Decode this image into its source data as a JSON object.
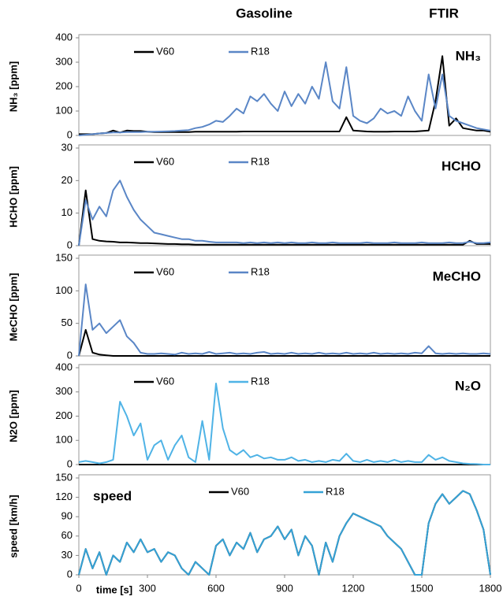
{
  "header": {
    "title": "Gasoline",
    "method": "FTIR"
  },
  "chart_data": [
    {
      "type": "line",
      "annotation": "NH₃",
      "ylabel": "NH₃ [ppm]",
      "x": [
        0,
        30,
        60,
        90,
        120,
        150,
        180,
        210,
        240,
        270,
        300,
        330,
        360,
        390,
        420,
        450,
        480,
        510,
        540,
        570,
        600,
        630,
        660,
        690,
        720,
        750,
        780,
        810,
        840,
        870,
        900,
        930,
        960,
        990,
        1020,
        1050,
        1080,
        1110,
        1140,
        1170,
        1200,
        1230,
        1260,
        1290,
        1320,
        1350,
        1380,
        1410,
        1440,
        1470,
        1500,
        1530,
        1560,
        1590,
        1620,
        1650,
        1680,
        1710,
        1740,
        1770,
        1800
      ],
      "xlim": [
        0,
        1800
      ],
      "ylim": [
        0,
        400
      ],
      "yticks": [
        0,
        100,
        200,
        300,
        400
      ],
      "series": [
        {
          "name": "V60",
          "color": "#000000",
          "values": [
            5,
            5,
            5,
            8,
            10,
            20,
            12,
            20,
            18,
            18,
            15,
            14,
            14,
            14,
            14,
            14,
            14,
            15,
            15,
            15,
            15,
            15,
            15,
            15,
            16,
            16,
            16,
            16,
            16,
            16,
            16,
            16,
            16,
            16,
            16,
            16,
            16,
            16,
            16,
            75,
            20,
            18,
            16,
            15,
            15,
            15,
            16,
            16,
            16,
            16,
            18,
            20,
            140,
            325,
            40,
            70,
            30,
            25,
            20,
            20,
            15
          ]
        },
        {
          "name": "R18",
          "color": "#5a86c6",
          "values": [
            0,
            3,
            5,
            8,
            10,
            12,
            12,
            14,
            14,
            14,
            15,
            15,
            16,
            17,
            18,
            20,
            22,
            30,
            35,
            45,
            60,
            55,
            80,
            110,
            90,
            160,
            140,
            170,
            130,
            100,
            180,
            120,
            170,
            130,
            200,
            150,
            300,
            140,
            110,
            280,
            80,
            60,
            50,
            70,
            110,
            90,
            100,
            80,
            160,
            100,
            60,
            250,
            110,
            250,
            80,
            60,
            50,
            40,
            30,
            25,
            20
          ]
        }
      ]
    },
    {
      "type": "line",
      "annotation": "HCHO",
      "ylabel": "HCHO [ppm]",
      "x": [
        0,
        30,
        60,
        90,
        120,
        150,
        180,
        210,
        240,
        270,
        300,
        330,
        360,
        390,
        420,
        450,
        480,
        510,
        540,
        570,
        600,
        630,
        660,
        690,
        720,
        750,
        780,
        810,
        840,
        870,
        900,
        930,
        960,
        990,
        1020,
        1050,
        1080,
        1110,
        1140,
        1170,
        1200,
        1230,
        1260,
        1290,
        1320,
        1350,
        1380,
        1410,
        1440,
        1470,
        1500,
        1530,
        1560,
        1590,
        1620,
        1650,
        1680,
        1710,
        1740,
        1770,
        1800
      ],
      "xlim": [
        0,
        1800
      ],
      "ylim": [
        0,
        30
      ],
      "yticks": [
        0,
        10,
        20,
        30
      ],
      "series": [
        {
          "name": "V60",
          "color": "#000000",
          "values": [
            0,
            17,
            2,
            1.5,
            1.3,
            1.2,
            1,
            1,
            0.9,
            0.8,
            0.8,
            0.7,
            0.6,
            0.5,
            0.5,
            0.4,
            0.4,
            0.3,
            0.3,
            0.3,
            0.3,
            0.3,
            0.3,
            0.3,
            0.3,
            0.3,
            0.3,
            0.3,
            0.3,
            0.3,
            0.3,
            0.3,
            0.3,
            0.3,
            0.3,
            0.3,
            0.3,
            0.3,
            0.3,
            0.3,
            0.3,
            0.3,
            0.3,
            0.3,
            0.3,
            0.3,
            0.3,
            0.3,
            0.3,
            0.3,
            0.3,
            0.3,
            0.3,
            0.3,
            0.3,
            0.3,
            0.3,
            1.5,
            0.5,
            0.5,
            0.5
          ]
        },
        {
          "name": "R18",
          "color": "#5a86c6",
          "values": [
            0,
            14,
            8,
            12,
            9,
            17,
            20,
            15,
            11,
            8,
            6,
            4,
            3.5,
            3,
            2.5,
            2,
            2,
            1.5,
            1.5,
            1.2,
            1,
            1,
            1,
            1,
            0.8,
            1,
            0.8,
            1,
            0.8,
            1,
            0.8,
            1,
            0.8,
            0.8,
            1,
            0.8,
            0.8,
            1,
            0.8,
            0.8,
            0.8,
            0.8,
            1,
            0.8,
            0.8,
            0.8,
            1,
            0.8,
            0.8,
            0.8,
            1,
            0.8,
            0.8,
            0.8,
            1,
            0.8,
            0.8,
            1.2,
            0.8,
            0.8,
            1
          ]
        }
      ]
    },
    {
      "type": "line",
      "annotation": "MeCHO",
      "ylabel": "MeCHO [ppm]",
      "x": [
        0,
        30,
        60,
        90,
        120,
        150,
        180,
        210,
        240,
        270,
        300,
        330,
        360,
        390,
        420,
        450,
        480,
        510,
        540,
        570,
        600,
        630,
        660,
        690,
        720,
        750,
        780,
        810,
        840,
        870,
        900,
        930,
        960,
        990,
        1020,
        1050,
        1080,
        1110,
        1140,
        1170,
        1200,
        1230,
        1260,
        1290,
        1320,
        1350,
        1380,
        1410,
        1440,
        1470,
        1500,
        1530,
        1560,
        1590,
        1620,
        1650,
        1680,
        1710,
        1740,
        1770,
        1800
      ],
      "xlim": [
        0,
        1800
      ],
      "ylim": [
        0,
        150
      ],
      "yticks": [
        0,
        50,
        100,
        150
      ],
      "series": [
        {
          "name": "V60",
          "color": "#000000",
          "values": [
            0,
            40,
            5,
            2,
            1,
            0,
            0,
            0,
            0,
            0,
            0,
            0,
            0,
            0,
            0,
            0,
            0,
            0,
            0,
            0,
            0,
            0,
            0,
            0,
            0,
            0,
            0,
            0,
            0,
            0,
            0,
            0,
            0,
            0,
            0,
            0,
            0,
            0,
            0,
            0,
            0,
            0,
            0,
            0,
            0,
            0,
            0,
            0,
            0,
            0,
            0,
            0,
            0,
            0,
            0,
            0,
            0,
            0,
            0,
            0,
            0
          ]
        },
        {
          "name": "R18",
          "color": "#5a86c6",
          "values": [
            0,
            110,
            40,
            50,
            35,
            45,
            55,
            30,
            20,
            5,
            3,
            3,
            4,
            3,
            2,
            5,
            3,
            4,
            3,
            6,
            3,
            4,
            5,
            3,
            4,
            3,
            5,
            6,
            3,
            4,
            3,
            5,
            3,
            4,
            3,
            5,
            3,
            4,
            3,
            5,
            3,
            4,
            3,
            5,
            3,
            4,
            3,
            4,
            3,
            5,
            4,
            15,
            4,
            3,
            4,
            3,
            4,
            3,
            3,
            4,
            3
          ]
        }
      ]
    },
    {
      "type": "line",
      "annotation": "N₂O",
      "ylabel": "N2O [ppm]",
      "x": [
        0,
        30,
        60,
        90,
        120,
        150,
        180,
        210,
        240,
        270,
        300,
        330,
        360,
        390,
        420,
        450,
        480,
        510,
        540,
        570,
        600,
        630,
        660,
        690,
        720,
        750,
        780,
        810,
        840,
        870,
        900,
        930,
        960,
        990,
        1020,
        1050,
        1080,
        1110,
        1140,
        1170,
        1200,
        1230,
        1260,
        1290,
        1320,
        1350,
        1380,
        1410,
        1440,
        1470,
        1500,
        1530,
        1560,
        1590,
        1620,
        1650,
        1680,
        1710,
        1740,
        1770,
        1800
      ],
      "xlim": [
        0,
        1800
      ],
      "ylim": [
        0,
        400
      ],
      "yticks": [
        0,
        100,
        200,
        300,
        400
      ],
      "series": [
        {
          "name": "V60",
          "color": "#000000",
          "values": [
            0,
            0,
            0,
            0,
            0,
            0,
            0,
            0,
            0,
            0,
            0,
            0,
            0,
            0,
            0,
            0,
            0,
            0,
            0,
            0,
            0,
            0,
            0,
            0,
            0,
            0,
            0,
            0,
            0,
            0,
            0,
            0,
            0,
            0,
            0,
            0,
            0,
            0,
            0,
            0,
            0,
            0,
            0,
            0,
            0,
            0,
            0,
            0,
            0,
            0,
            0,
            0,
            0,
            0,
            0,
            0,
            0,
            0,
            0,
            0,
            0
          ]
        },
        {
          "name": "R18",
          "color": "#4fb3e6",
          "values": [
            10,
            15,
            10,
            5,
            10,
            20,
            260,
            200,
            120,
            170,
            20,
            80,
            100,
            20,
            80,
            120,
            30,
            10,
            180,
            20,
            335,
            150,
            60,
            40,
            60,
            30,
            40,
            25,
            30,
            20,
            20,
            30,
            15,
            20,
            10,
            15,
            10,
            20,
            15,
            45,
            15,
            10,
            20,
            10,
            15,
            10,
            20,
            10,
            15,
            10,
            10,
            40,
            20,
            30,
            15,
            10,
            5,
            3,
            2,
            0,
            0
          ]
        }
      ]
    },
    {
      "type": "line",
      "annotation": "speed",
      "ylabel": "speed [km/h]",
      "xlabel": "time [s]",
      "x": [
        0,
        30,
        60,
        90,
        120,
        150,
        180,
        210,
        240,
        270,
        300,
        330,
        360,
        390,
        420,
        450,
        480,
        510,
        540,
        570,
        600,
        630,
        660,
        690,
        720,
        750,
        780,
        810,
        840,
        870,
        900,
        930,
        960,
        990,
        1020,
        1050,
        1080,
        1110,
        1140,
        1170,
        1200,
        1230,
        1260,
        1290,
        1320,
        1350,
        1380,
        1410,
        1440,
        1470,
        1500,
        1530,
        1560,
        1590,
        1620,
        1650,
        1680,
        1710,
        1740,
        1770,
        1800
      ],
      "xlim": [
        0,
        1800
      ],
      "xticks": [
        0,
        300,
        600,
        900,
        1200,
        1500,
        1800
      ],
      "ylim": [
        0,
        150
      ],
      "yticks": [
        0,
        30,
        60,
        90,
        120,
        150
      ],
      "series": [
        {
          "name": "V60",
          "color": "#000000",
          "values": [
            0,
            40,
            10,
            35,
            0,
            30,
            20,
            50,
            35,
            55,
            35,
            40,
            20,
            35,
            30,
            10,
            0,
            20,
            10,
            0,
            45,
            55,
            30,
            50,
            40,
            65,
            35,
            55,
            60,
            75,
            55,
            70,
            30,
            60,
            45,
            0,
            50,
            20,
            60,
            80,
            95,
            90,
            85,
            80,
            75,
            60,
            50,
            40,
            20,
            0,
            0,
            80,
            110,
            125,
            110,
            120,
            130,
            125,
            100,
            70,
            0
          ]
        },
        {
          "name": "R18",
          "color": "#35a2d6",
          "values": [
            0,
            40,
            10,
            35,
            0,
            30,
            20,
            50,
            35,
            55,
            35,
            40,
            20,
            35,
            30,
            10,
            0,
            20,
            10,
            0,
            45,
            55,
            30,
            50,
            40,
            65,
            35,
            55,
            60,
            75,
            55,
            70,
            30,
            60,
            45,
            0,
            50,
            20,
            60,
            80,
            95,
            90,
            85,
            80,
            75,
            60,
            50,
            40,
            20,
            0,
            0,
            80,
            110,
            125,
            110,
            120,
            130,
            125,
            100,
            70,
            0
          ]
        }
      ]
    }
  ]
}
